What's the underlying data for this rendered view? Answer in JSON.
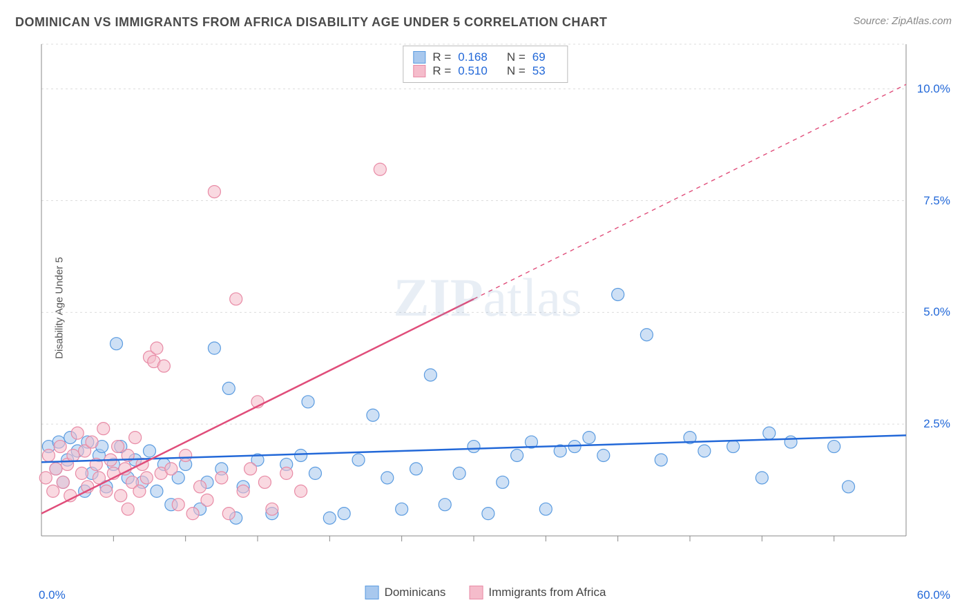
{
  "title": "DOMINICAN VS IMMIGRANTS FROM AFRICA DISABILITY AGE UNDER 5 CORRELATION CHART",
  "source": "Source: ZipAtlas.com",
  "ylabel": "Disability Age Under 5",
  "watermark_zip": "ZIP",
  "watermark_atlas": "atlas",
  "chart": {
    "type": "scatter",
    "xlim": [
      0,
      60
    ],
    "ylim": [
      0,
      11
    ],
    "x_axis_min_label": "0.0%",
    "x_axis_max_label": "60.0%",
    "y_ticks": [
      2.5,
      5.0,
      7.5,
      10.0
    ],
    "y_tick_labels": [
      "2.5%",
      "5.0%",
      "7.5%",
      "10.0%"
    ],
    "grid_color": "#dcdcdc",
    "axis_color": "#888888",
    "tick_color": "#888888",
    "background_color": "#ffffff",
    "marker_radius": 9,
    "marker_stroke_width": 1.2,
    "marker_fill_opacity": 0.22,
    "trend_line_width": 2.5,
    "series": [
      {
        "name": "Dominicans",
        "color_stroke": "#5a9be0",
        "color_fill": "#a8c8ee",
        "trend_color": "#2268d8",
        "R": "0.168",
        "N": "69",
        "trend_y_intercept": 1.65,
        "trend_slope": 0.01,
        "trend_xmax_for_solid": 60,
        "points": [
          [
            0.5,
            2.0
          ],
          [
            1.0,
            1.5
          ],
          [
            1.2,
            2.1
          ],
          [
            1.5,
            1.2
          ],
          [
            1.8,
            1.7
          ],
          [
            2.0,
            2.2
          ],
          [
            2.5,
            1.9
          ],
          [
            3.0,
            1.0
          ],
          [
            3.2,
            2.1
          ],
          [
            3.5,
            1.4
          ],
          [
            4.0,
            1.8
          ],
          [
            4.2,
            2.0
          ],
          [
            4.5,
            1.1
          ],
          [
            5.0,
            1.6
          ],
          [
            5.2,
            4.3
          ],
          [
            5.5,
            2.0
          ],
          [
            6.0,
            1.3
          ],
          [
            6.5,
            1.7
          ],
          [
            7.0,
            1.2
          ],
          [
            7.5,
            1.9
          ],
          [
            8.0,
            1.0
          ],
          [
            8.5,
            1.6
          ],
          [
            9.0,
            0.7
          ],
          [
            9.5,
            1.3
          ],
          [
            10.0,
            1.6
          ],
          [
            11.0,
            0.6
          ],
          [
            11.5,
            1.2
          ],
          [
            12.0,
            4.2
          ],
          [
            12.5,
            1.5
          ],
          [
            13.0,
            3.3
          ],
          [
            13.5,
            0.4
          ],
          [
            14.0,
            1.1
          ],
          [
            15.0,
            1.7
          ],
          [
            16.0,
            0.5
          ],
          [
            17.0,
            1.6
          ],
          [
            18.0,
            1.8
          ],
          [
            18.5,
            3.0
          ],
          [
            19.0,
            1.4
          ],
          [
            20.0,
            0.4
          ],
          [
            21.0,
            0.5
          ],
          [
            22.0,
            1.7
          ],
          [
            23.0,
            2.7
          ],
          [
            24.0,
            1.3
          ],
          [
            25.0,
            0.6
          ],
          [
            26.0,
            1.5
          ],
          [
            27.0,
            3.6
          ],
          [
            28.0,
            0.7
          ],
          [
            29.0,
            1.4
          ],
          [
            30.0,
            2.0
          ],
          [
            31.0,
            0.5
          ],
          [
            32.0,
            1.2
          ],
          [
            33.0,
            1.8
          ],
          [
            34.0,
            2.1
          ],
          [
            35.0,
            0.6
          ],
          [
            36.0,
            1.9
          ],
          [
            37.0,
            2.0
          ],
          [
            38.0,
            2.2
          ],
          [
            39.0,
            1.8
          ],
          [
            40.0,
            5.4
          ],
          [
            42.0,
            4.5
          ],
          [
            43.0,
            1.7
          ],
          [
            45.0,
            2.2
          ],
          [
            46.0,
            1.9
          ],
          [
            48.0,
            2.0
          ],
          [
            50.0,
            1.3
          ],
          [
            52.0,
            2.1
          ],
          [
            55.0,
            2.0
          ],
          [
            56.0,
            1.1
          ],
          [
            50.5,
            2.3
          ]
        ]
      },
      {
        "name": "Immigrants from Africa",
        "color_stroke": "#e88aa5",
        "color_fill": "#f5bccb",
        "trend_color": "#e04d7a",
        "R": "0.510",
        "N": "53",
        "trend_y_intercept": 0.5,
        "trend_slope": 0.16,
        "trend_xmax_for_solid": 30,
        "points": [
          [
            0.3,
            1.3
          ],
          [
            0.5,
            1.8
          ],
          [
            0.8,
            1.0
          ],
          [
            1.0,
            1.5
          ],
          [
            1.3,
            2.0
          ],
          [
            1.5,
            1.2
          ],
          [
            1.8,
            1.6
          ],
          [
            2.0,
            0.9
          ],
          [
            2.2,
            1.8
          ],
          [
            2.5,
            2.3
          ],
          [
            2.8,
            1.4
          ],
          [
            3.0,
            1.9
          ],
          [
            3.2,
            1.1
          ],
          [
            3.5,
            2.1
          ],
          [
            3.8,
            1.6
          ],
          [
            4.0,
            1.3
          ],
          [
            4.3,
            2.4
          ],
          [
            4.5,
            1.0
          ],
          [
            4.8,
            1.7
          ],
          [
            5.0,
            1.4
          ],
          [
            5.3,
            2.0
          ],
          [
            5.5,
            0.9
          ],
          [
            5.8,
            1.5
          ],
          [
            6.0,
            1.8
          ],
          [
            6.3,
            1.2
          ],
          [
            6.5,
            2.2
          ],
          [
            6.8,
            1.0
          ],
          [
            7.0,
            1.6
          ],
          [
            7.3,
            1.3
          ],
          [
            7.5,
            4.0
          ],
          [
            7.8,
            3.9
          ],
          [
            8.0,
            4.2
          ],
          [
            8.3,
            1.4
          ],
          [
            8.5,
            3.8
          ],
          [
            9.0,
            1.5
          ],
          [
            9.5,
            0.7
          ],
          [
            10.0,
            1.8
          ],
          [
            10.5,
            0.5
          ],
          [
            11.0,
            1.1
          ],
          [
            11.5,
            0.8
          ],
          [
            12.0,
            7.7
          ],
          [
            12.5,
            1.3
          ],
          [
            13.0,
            0.5
          ],
          [
            13.5,
            5.3
          ],
          [
            14.0,
            1.0
          ],
          [
            14.5,
            1.5
          ],
          [
            15.0,
            3.0
          ],
          [
            15.5,
            1.2
          ],
          [
            16.0,
            0.6
          ],
          [
            17.0,
            1.4
          ],
          [
            18.0,
            1.0
          ],
          [
            23.5,
            8.2
          ],
          [
            6.0,
            0.6
          ]
        ]
      }
    ]
  },
  "stats_legend": {
    "R_label": "R =",
    "N_label": "N ="
  }
}
